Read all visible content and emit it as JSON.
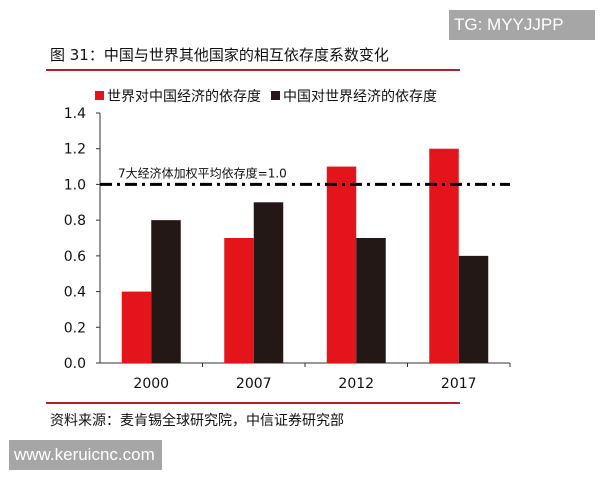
{
  "watermark_top": "TG: MYYJJPP",
  "watermark_bottom": "www.keruicnc.com",
  "figure_title": "图 31：中国与世界其他国家的相互依存度系数变化",
  "source": "资料来源：麦肯锡全球研究院，中信证券研究部",
  "chart_data": {
    "type": "bar",
    "title": "",
    "xlabel": "",
    "ylabel": "",
    "categories": [
      "2000",
      "2007",
      "2012",
      "2017"
    ],
    "series": [
      {
        "name": "世界对中国经济的依存度",
        "color": "#e3151a",
        "values": [
          0.4,
          0.7,
          1.1,
          1.2
        ]
      },
      {
        "name": "中国对世界经济的依存度",
        "color": "#231815",
        "values": [
          0.8,
          0.9,
          0.7,
          0.6
        ]
      }
    ],
    "ylim": [
      0,
      1.4
    ],
    "yticks": [
      "0.0",
      "0.2",
      "0.4",
      "0.6",
      "0.8",
      "1.0",
      "1.2",
      "1.4"
    ],
    "reference_line": {
      "value": 1.0,
      "label": "7大经济体加权平均依存度=1.0",
      "style": "dash-dot"
    },
    "legend_position": "top",
    "grid": false
  }
}
